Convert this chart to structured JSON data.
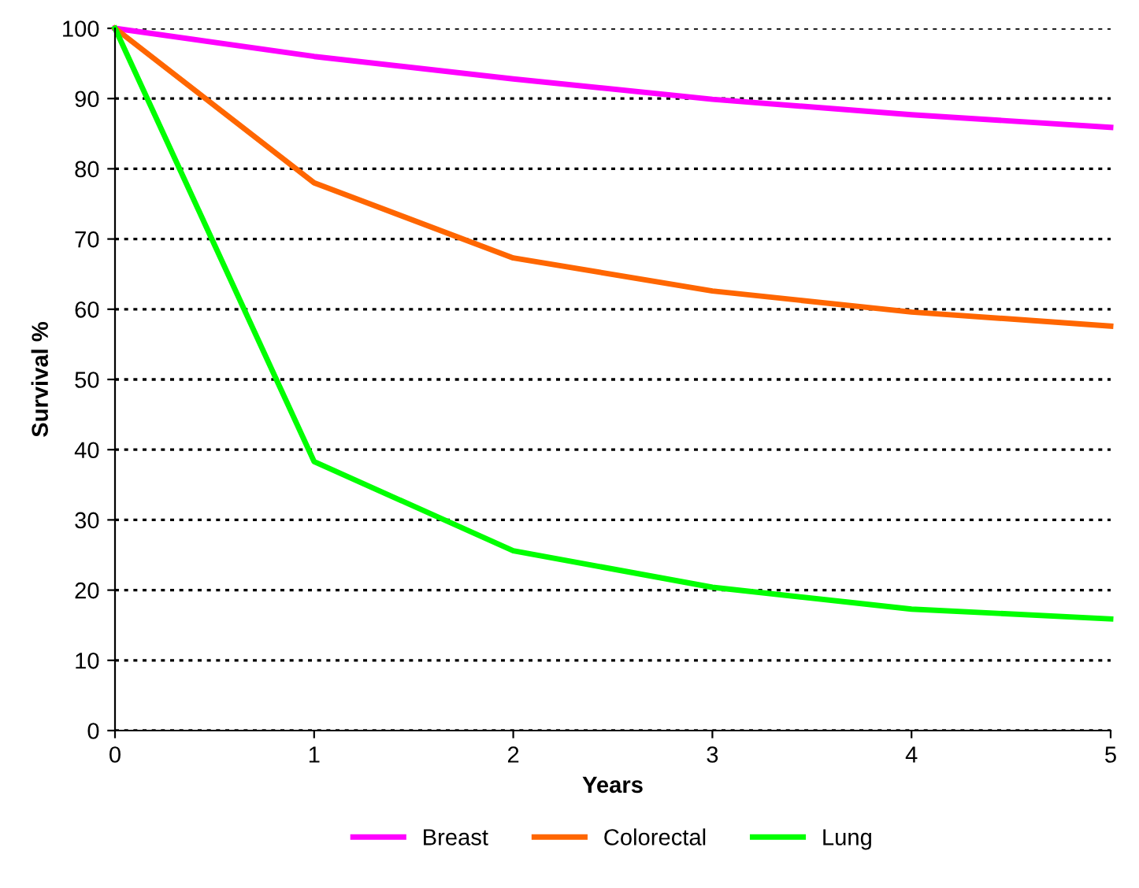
{
  "chart_data": {
    "type": "line",
    "xlabel": "Years",
    "ylabel": "Survival %",
    "x": [
      0,
      1,
      2,
      3,
      4,
      5
    ],
    "series": [
      {
        "name": "Breast",
        "color": "#ff00ff",
        "values": [
          100,
          96,
          92.8,
          89.9,
          87.7,
          85.9
        ]
      },
      {
        "name": "Colorectal",
        "color": "#ff6600",
        "values": [
          100,
          78,
          67.3,
          62.6,
          59.6,
          57.6
        ]
      },
      {
        "name": "Lung",
        "color": "#00ff00",
        "values": [
          100,
          38.3,
          25.6,
          20.4,
          17.3,
          15.9
        ]
      }
    ],
    "xlim": [
      0,
      5
    ],
    "xticks": [
      0,
      1,
      2,
      3,
      4,
      5
    ],
    "ylim": [
      0,
      100
    ],
    "yticks": [
      0,
      10,
      20,
      30,
      40,
      50,
      60,
      70,
      80,
      90,
      100
    ],
    "grid": "y",
    "legend": "bottom",
    "marker": "none",
    "line_style": "solid"
  }
}
